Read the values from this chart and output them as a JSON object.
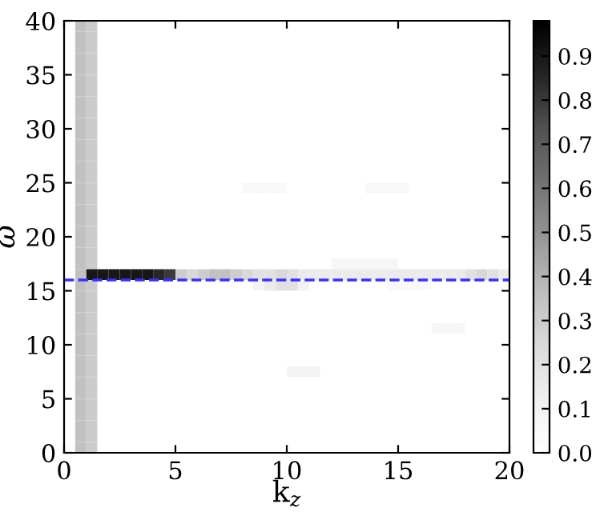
{
  "chart_data": {
    "type": "heatmap",
    "xlabel": "k$_{z}$",
    "ylabel": "ω",
    "x": [
      0.25,
      0.75,
      1.25,
      1.75,
      2.25,
      2.75,
      3.25,
      3.75,
      4.25,
      4.75,
      5.25,
      5.75,
      6.25,
      6.75,
      7.25,
      7.75,
      8.25,
      8.75,
      9.25,
      9.75,
      10.25,
      10.75,
      11.25,
      11.75,
      12.25,
      12.75,
      13.25,
      13.75,
      14.25,
      14.75,
      15.25,
      15.75,
      16.25,
      16.75,
      17.25,
      17.75,
      18.25,
      18.75,
      19.25,
      19.75
    ],
    "y": [
      39.5,
      38.5,
      37.5,
      36.5,
      35.5,
      34.5,
      33.5,
      32.5,
      31.5,
      30.5,
      29.5,
      28.5,
      27.5,
      26.5,
      25.5,
      24.5,
      23.5,
      22.5,
      21.5,
      20.5,
      19.5,
      18.5,
      17.5,
      16.5,
      15.5,
      14.5,
      13.5,
      12.5,
      11.5,
      10.5,
      9.5,
      8.5,
      7.5,
      6.5,
      5.5,
      4.5,
      3.5,
      2.5,
      1.5,
      0.5
    ],
    "xlim": [
      0,
      20
    ],
    "xticks": [
      0,
      5,
      10,
      15,
      20
    ],
    "ylim": [
      0,
      40
    ],
    "yticks": [
      0,
      5,
      10,
      15,
      20,
      25,
      30,
      35,
      40
    ],
    "clim": [
      0,
      0.98
    ],
    "cticks": [
      {
        "value": 0,
        "label": "0.0"
      },
      0.1,
      0.2,
      0.3,
      0.4,
      0.5,
      0.6,
      0.7,
      0.8,
      0.9
    ],
    "color": "Greys",
    "ref_lines": [
      {
        "axis": "y",
        "value": 16,
        "color": "#3333ff",
        "line_style": "dashed"
      }
    ],
    "cells": [
      [
        0,
        0.35,
        0.3,
        0,
        0,
        0,
        0,
        0,
        0,
        0,
        0,
        0,
        0,
        0,
        0,
        0,
        0,
        0,
        0,
        0,
        0,
        0,
        0,
        0,
        0,
        0,
        0,
        0,
        0,
        0,
        0,
        0,
        0,
        0,
        0,
        0,
        0,
        0,
        0,
        0
      ],
      [
        0,
        0.35,
        0.3,
        0,
        0,
        0,
        0,
        0,
        0,
        0,
        0,
        0,
        0,
        0,
        0,
        0,
        0,
        0,
        0,
        0,
        0,
        0,
        0,
        0,
        0,
        0,
        0,
        0,
        0,
        0,
        0,
        0,
        0,
        0,
        0,
        0,
        0,
        0,
        0,
        0
      ],
      [
        0,
        0.35,
        0.3,
        0,
        0,
        0,
        0,
        0,
        0,
        0,
        0,
        0,
        0,
        0,
        0,
        0,
        0,
        0,
        0,
        0,
        0,
        0,
        0,
        0,
        0,
        0,
        0,
        0,
        0,
        0,
        0,
        0,
        0,
        0,
        0,
        0,
        0,
        0,
        0,
        0
      ],
      [
        0,
        0.35,
        0.3,
        0,
        0,
        0,
        0,
        0,
        0,
        0,
        0,
        0,
        0,
        0,
        0,
        0,
        0,
        0,
        0,
        0,
        0,
        0,
        0,
        0,
        0,
        0,
        0,
        0,
        0,
        0,
        0,
        0,
        0,
        0,
        0,
        0,
        0,
        0,
        0,
        0
      ],
      [
        0,
        0.35,
        0.3,
        0,
        0,
        0,
        0,
        0,
        0,
        0,
        0,
        0,
        0,
        0,
        0,
        0,
        0,
        0,
        0,
        0,
        0,
        0,
        0,
        0,
        0,
        0,
        0,
        0,
        0,
        0,
        0,
        0,
        0,
        0,
        0,
        0,
        0,
        0,
        0,
        0
      ],
      [
        0,
        0.35,
        0.3,
        0,
        0,
        0,
        0,
        0,
        0,
        0,
        0,
        0,
        0,
        0,
        0,
        0,
        0,
        0,
        0,
        0,
        0,
        0,
        0,
        0,
        0,
        0,
        0,
        0,
        0,
        0,
        0,
        0,
        0,
        0,
        0,
        0,
        0,
        0,
        0,
        0
      ],
      [
        0,
        0.35,
        0.3,
        0,
        0,
        0,
        0,
        0,
        0,
        0,
        0,
        0,
        0,
        0,
        0,
        0,
        0,
        0,
        0,
        0,
        0,
        0,
        0,
        0,
        0,
        0,
        0,
        0,
        0,
        0,
        0,
        0,
        0,
        0,
        0,
        0,
        0,
        0,
        0,
        0
      ],
      [
        0,
        0.35,
        0.3,
        0,
        0,
        0,
        0,
        0,
        0,
        0,
        0,
        0,
        0,
        0,
        0,
        0,
        0,
        0,
        0,
        0,
        0,
        0,
        0,
        0,
        0,
        0,
        0,
        0,
        0,
        0,
        0,
        0,
        0,
        0,
        0,
        0,
        0,
        0,
        0,
        0
      ],
      [
        0,
        0.35,
        0.3,
        0,
        0,
        0,
        0,
        0,
        0,
        0,
        0,
        0,
        0,
        0,
        0,
        0,
        0,
        0,
        0,
        0,
        0,
        0,
        0,
        0,
        0,
        0,
        0,
        0,
        0,
        0,
        0,
        0,
        0,
        0,
        0,
        0,
        0,
        0,
        0,
        0
      ],
      [
        0,
        0.35,
        0.3,
        0,
        0,
        0,
        0,
        0,
        0,
        0,
        0,
        0,
        0,
        0,
        0,
        0,
        0,
        0,
        0,
        0,
        0,
        0,
        0,
        0,
        0,
        0,
        0,
        0,
        0,
        0,
        0,
        0,
        0,
        0,
        0,
        0,
        0,
        0,
        0,
        0
      ],
      [
        0,
        0.35,
        0.3,
        0,
        0,
        0,
        0,
        0,
        0,
        0,
        0,
        0,
        0,
        0,
        0,
        0,
        0,
        0,
        0,
        0,
        0,
        0,
        0,
        0,
        0,
        0,
        0,
        0,
        0,
        0,
        0,
        0,
        0,
        0,
        0,
        0,
        0,
        0,
        0,
        0
      ],
      [
        0,
        0.35,
        0.3,
        0,
        0,
        0,
        0,
        0,
        0,
        0,
        0,
        0,
        0,
        0,
        0,
        0,
        0,
        0,
        0,
        0,
        0,
        0,
        0,
        0,
        0,
        0,
        0,
        0,
        0,
        0,
        0,
        0,
        0,
        0,
        0,
        0,
        0,
        0,
        0,
        0
      ],
      [
        0,
        0.35,
        0.3,
        0,
        0,
        0,
        0,
        0,
        0,
        0,
        0,
        0,
        0,
        0,
        0,
        0,
        0,
        0,
        0,
        0,
        0,
        0,
        0,
        0,
        0,
        0,
        0,
        0,
        0,
        0,
        0,
        0,
        0,
        0,
        0,
        0,
        0,
        0,
        0,
        0
      ],
      [
        0,
        0.35,
        0.3,
        0,
        0,
        0,
        0,
        0,
        0,
        0,
        0,
        0,
        0,
        0,
        0,
        0,
        0,
        0,
        0,
        0,
        0,
        0,
        0,
        0,
        0,
        0,
        0,
        0,
        0,
        0,
        0,
        0,
        0,
        0,
        0,
        0,
        0,
        0,
        0,
        0
      ],
      [
        0,
        0.35,
        0.3,
        0,
        0,
        0,
        0,
        0,
        0,
        0,
        0,
        0,
        0,
        0,
        0,
        0,
        0,
        0,
        0,
        0,
        0,
        0,
        0,
        0,
        0,
        0,
        0,
        0,
        0,
        0,
        0,
        0,
        0,
        0,
        0,
        0,
        0,
        0,
        0,
        0
      ],
      [
        0,
        0.35,
        0.3,
        0,
        0,
        0,
        0,
        0,
        0,
        0,
        0,
        0,
        0,
        0,
        0,
        0,
        0.05,
        0.05,
        0.05,
        0.05,
        0,
        0,
        0,
        0,
        0,
        0,
        0,
        0.05,
        0.05,
        0.05,
        0.05,
        0,
        0,
        0,
        0,
        0,
        0,
        0,
        0,
        0
      ],
      [
        0,
        0.35,
        0.3,
        0,
        0,
        0,
        0,
        0,
        0,
        0,
        0,
        0,
        0,
        0,
        0,
        0,
        0,
        0,
        0,
        0,
        0,
        0,
        0,
        0,
        0,
        0,
        0,
        0,
        0,
        0,
        0,
        0,
        0,
        0,
        0,
        0,
        0,
        0,
        0,
        0
      ],
      [
        0,
        0.35,
        0.3,
        0,
        0,
        0,
        0,
        0,
        0,
        0,
        0,
        0,
        0,
        0,
        0,
        0,
        0,
        0,
        0,
        0,
        0,
        0,
        0,
        0,
        0,
        0,
        0,
        0,
        0,
        0,
        0,
        0,
        0,
        0,
        0,
        0,
        0,
        0,
        0,
        0
      ],
      [
        0,
        0.35,
        0.3,
        0,
        0,
        0,
        0,
        0,
        0,
        0,
        0,
        0,
        0,
        0,
        0,
        0,
        0,
        0,
        0,
        0,
        0,
        0,
        0,
        0,
        0,
        0,
        0,
        0,
        0,
        0,
        0,
        0,
        0,
        0,
        0,
        0,
        0,
        0,
        0,
        0
      ],
      [
        0,
        0.35,
        0.3,
        0,
        0,
        0,
        0,
        0,
        0,
        0,
        0,
        0,
        0,
        0,
        0,
        0,
        0,
        0,
        0,
        0,
        0,
        0,
        0,
        0,
        0,
        0,
        0,
        0,
        0,
        0,
        0,
        0,
        0,
        0,
        0,
        0,
        0,
        0,
        0,
        0
      ],
      [
        0,
        0.35,
        0.3,
        0,
        0,
        0,
        0,
        0,
        0,
        0,
        0,
        0,
        0,
        0,
        0,
        0,
        0,
        0,
        0,
        0,
        0,
        0,
        0,
        0,
        0,
        0,
        0,
        0,
        0,
        0,
        0,
        0,
        0,
        0,
        0,
        0,
        0,
        0,
        0,
        0
      ],
      [
        0,
        0.35,
        0.3,
        0,
        0,
        0,
        0,
        0,
        0,
        0,
        0,
        0,
        0,
        0,
        0,
        0,
        0,
        0,
        0,
        0,
        0,
        0,
        0,
        0,
        0,
        0,
        0,
        0,
        0,
        0,
        0,
        0,
        0,
        0,
        0,
        0,
        0,
        0,
        0,
        0
      ],
      [
        0,
        0.35,
        0.3,
        0,
        0,
        0,
        0,
        0,
        0,
        0,
        0,
        0,
        0,
        0,
        0,
        0,
        0,
        0,
        0,
        0,
        0,
        0,
        0,
        0,
        0.08,
        0.08,
        0.08,
        0.08,
        0.08,
        0.08,
        0,
        0,
        0,
        0,
        0,
        0,
        0,
        0,
        0,
        0
      ],
      [
        0,
        0.35,
        0.9,
        0.9,
        0.9,
        0.9,
        0.9,
        0.9,
        0.85,
        0.8,
        0.3,
        0.25,
        0.3,
        0.35,
        0.35,
        0.3,
        0.25,
        0.2,
        0.2,
        0.25,
        0.2,
        0.15,
        0.15,
        0.15,
        0.15,
        0.15,
        0.15,
        0.15,
        0.15,
        0.15,
        0.15,
        0.15,
        0.15,
        0.15,
        0.15,
        0.15,
        0.2,
        0.25,
        0.2,
        0.15
      ],
      [
        0,
        0.35,
        0.3,
        0,
        0,
        0,
        0,
        0,
        0,
        0,
        0,
        0,
        0,
        0,
        0,
        0,
        0,
        0.1,
        0.15,
        0.2,
        0.2,
        0.1,
        0,
        0,
        0,
        0,
        0,
        0,
        0,
        0.05,
        0.05,
        0.05,
        0.05,
        0,
        0,
        0,
        0,
        0,
        0,
        0
      ],
      [
        0,
        0.35,
        0.3,
        0,
        0,
        0,
        0,
        0,
        0,
        0,
        0,
        0,
        0,
        0,
        0,
        0,
        0,
        0,
        0,
        0,
        0,
        0,
        0,
        0,
        0,
        0,
        0,
        0,
        0,
        0,
        0,
        0,
        0,
        0,
        0,
        0,
        0,
        0,
        0,
        0
      ],
      [
        0,
        0.35,
        0.3,
        0,
        0,
        0,
        0,
        0,
        0,
        0,
        0,
        0,
        0,
        0,
        0,
        0,
        0,
        0,
        0,
        0,
        0,
        0,
        0,
        0,
        0,
        0,
        0,
        0,
        0,
        0,
        0,
        0,
        0,
        0,
        0,
        0,
        0,
        0,
        0,
        0
      ],
      [
        0,
        0.35,
        0.3,
        0,
        0,
        0,
        0,
        0,
        0,
        0,
        0,
        0,
        0,
        0,
        0,
        0,
        0,
        0,
        0,
        0,
        0,
        0,
        0,
        0,
        0,
        0,
        0,
        0,
        0,
        0,
        0,
        0,
        0,
        0,
        0,
        0,
        0,
        0,
        0,
        0
      ],
      [
        0,
        0.35,
        0.3,
        0,
        0,
        0,
        0,
        0,
        0,
        0,
        0,
        0,
        0,
        0,
        0,
        0,
        0,
        0,
        0,
        0,
        0,
        0,
        0,
        0,
        0,
        0,
        0,
        0,
        0,
        0,
        0,
        0,
        0,
        0.08,
        0.08,
        0.08,
        0,
        0,
        0,
        0
      ],
      [
        0,
        0.35,
        0.3,
        0,
        0,
        0,
        0,
        0,
        0,
        0,
        0,
        0,
        0,
        0,
        0,
        0,
        0,
        0,
        0,
        0,
        0,
        0,
        0,
        0,
        0,
        0,
        0,
        0,
        0,
        0,
        0,
        0,
        0,
        0,
        0,
        0,
        0,
        0,
        0,
        0
      ],
      [
        0,
        0.35,
        0.3,
        0,
        0,
        0,
        0,
        0,
        0,
        0,
        0,
        0,
        0,
        0,
        0,
        0,
        0,
        0,
        0,
        0,
        0,
        0,
        0,
        0,
        0,
        0,
        0,
        0,
        0,
        0,
        0,
        0,
        0,
        0,
        0,
        0,
        0,
        0,
        0,
        0
      ],
      [
        0,
        0.35,
        0.3,
        0,
        0,
        0,
        0,
        0,
        0,
        0,
        0,
        0,
        0,
        0,
        0,
        0,
        0,
        0,
        0,
        0,
        0,
        0,
        0,
        0,
        0,
        0,
        0,
        0,
        0,
        0,
        0,
        0,
        0,
        0,
        0,
        0,
        0,
        0,
        0,
        0
      ],
      [
        0,
        0.35,
        0.3,
        0,
        0,
        0,
        0,
        0,
        0,
        0,
        0,
        0,
        0,
        0,
        0,
        0,
        0,
        0,
        0,
        0,
        0.1,
        0.1,
        0.1,
        0,
        0,
        0,
        0,
        0,
        0,
        0,
        0,
        0,
        0,
        0,
        0,
        0,
        0,
        0,
        0,
        0
      ],
      [
        0,
        0.35,
        0.3,
        0,
        0,
        0,
        0,
        0,
        0,
        0,
        0,
        0,
        0,
        0,
        0,
        0,
        0,
        0,
        0,
        0,
        0,
        0,
        0,
        0,
        0,
        0,
        0,
        0,
        0,
        0,
        0,
        0,
        0,
        0,
        0,
        0,
        0,
        0,
        0,
        0
      ],
      [
        0,
        0.35,
        0.3,
        0,
        0,
        0,
        0,
        0,
        0,
        0,
        0,
        0,
        0,
        0,
        0,
        0,
        0,
        0,
        0,
        0,
        0,
        0,
        0,
        0,
        0,
        0,
        0,
        0,
        0,
        0,
        0,
        0,
        0,
        0,
        0,
        0,
        0,
        0,
        0,
        0
      ],
      [
        0,
        0.35,
        0.3,
        0,
        0,
        0,
        0,
        0,
        0,
        0,
        0,
        0,
        0,
        0,
        0,
        0,
        0,
        0,
        0,
        0,
        0,
        0,
        0,
        0,
        0,
        0,
        0,
        0,
        0,
        0,
        0,
        0,
        0,
        0,
        0,
        0,
        0,
        0,
        0,
        0
      ],
      [
        0,
        0.35,
        0.3,
        0,
        0,
        0,
        0,
        0,
        0,
        0,
        0,
        0,
        0,
        0,
        0,
        0,
        0,
        0,
        0,
        0,
        0,
        0,
        0,
        0,
        0,
        0,
        0,
        0,
        0,
        0,
        0,
        0,
        0,
        0,
        0,
        0,
        0,
        0,
        0,
        0
      ],
      [
        0,
        0.35,
        0.3,
        0,
        0,
        0,
        0,
        0,
        0,
        0,
        0,
        0,
        0,
        0,
        0,
        0,
        0,
        0,
        0,
        0,
        0,
        0,
        0,
        0,
        0,
        0,
        0,
        0,
        0,
        0,
        0,
        0,
        0,
        0,
        0,
        0,
        0,
        0,
        0,
        0
      ],
      [
        0,
        0.35,
        0.3,
        0,
        0,
        0,
        0,
        0,
        0,
        0,
        0,
        0,
        0,
        0,
        0,
        0,
        0,
        0,
        0,
        0,
        0,
        0,
        0,
        0,
        0,
        0,
        0,
        0,
        0,
        0,
        0,
        0,
        0,
        0,
        0,
        0,
        0,
        0,
        0,
        0
      ],
      [
        0,
        0.35,
        0.3,
        0,
        0,
        0,
        0,
        0,
        0,
        0,
        0,
        0,
        0,
        0,
        0,
        0,
        0,
        0,
        0,
        0,
        0,
        0,
        0,
        0,
        0,
        0,
        0,
        0,
        0,
        0,
        0,
        0,
        0,
        0,
        0,
        0,
        0,
        0,
        0,
        0
      ]
    ]
  }
}
